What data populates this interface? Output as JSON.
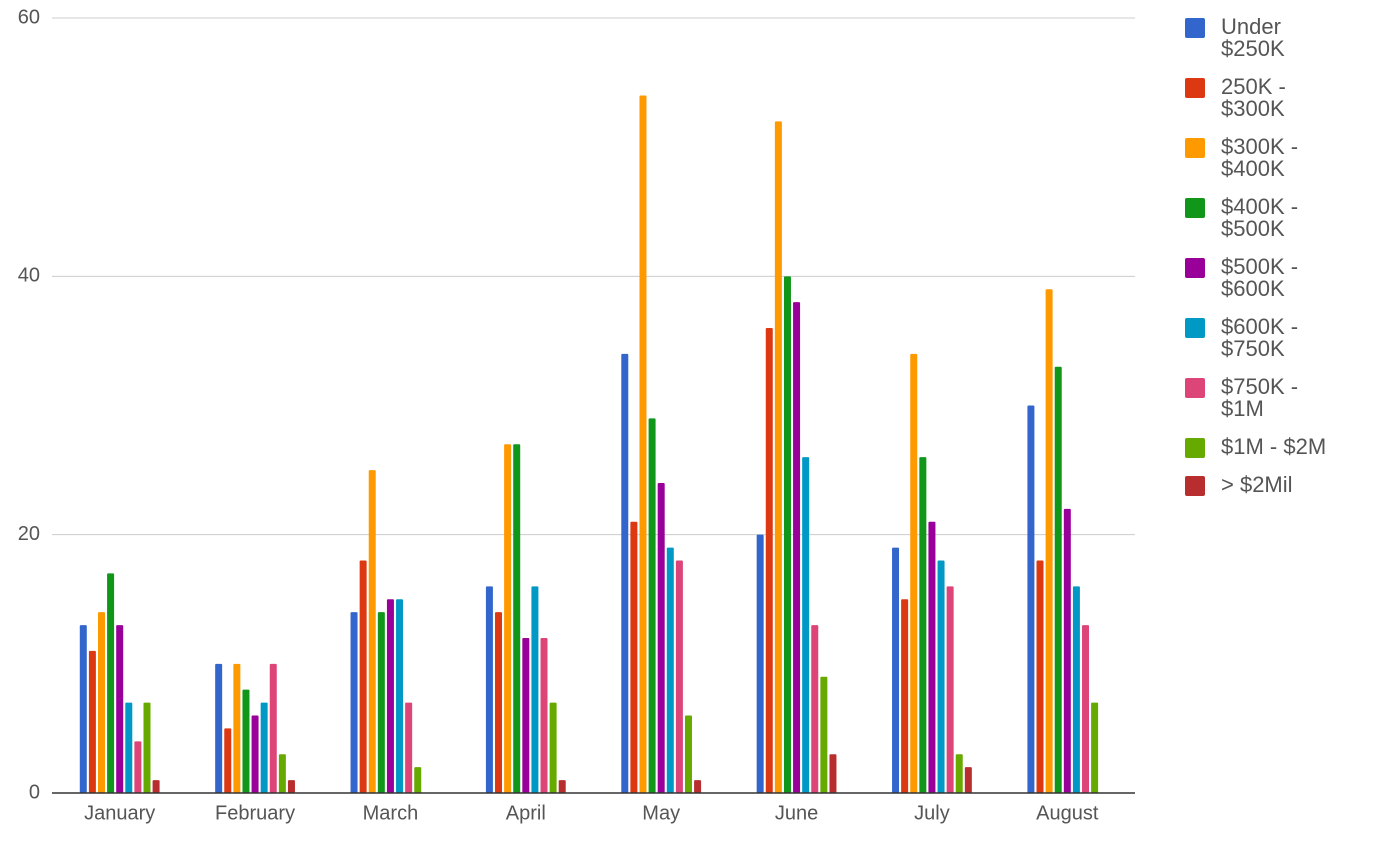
{
  "chart_data": {
    "type": "bar",
    "categories": [
      "January",
      "February",
      "March",
      "April",
      "May",
      "June",
      "July",
      "August"
    ],
    "series": [
      {
        "name": "Under $250K",
        "color": "#3366cc",
        "values": [
          13,
          10,
          14,
          16,
          34,
          20,
          19,
          30
        ]
      },
      {
        "name": "250K - $300K",
        "color": "#dc3912",
        "values": [
          11,
          5,
          18,
          14,
          21,
          36,
          15,
          18
        ]
      },
      {
        "name": "$300K - $400K",
        "color": "#ff9900",
        "values": [
          14,
          10,
          25,
          27,
          54,
          52,
          34,
          39
        ]
      },
      {
        "name": "$400K - $500K",
        "color": "#109618",
        "values": [
          17,
          8,
          14,
          27,
          29,
          40,
          26,
          33
        ]
      },
      {
        "name": "$500K - $600K",
        "color": "#990099",
        "values": [
          13,
          6,
          15,
          12,
          24,
          38,
          21,
          22
        ]
      },
      {
        "name": "$600K - $750K",
        "color": "#0099c6",
        "values": [
          7,
          7,
          15,
          16,
          19,
          26,
          18,
          16
        ]
      },
      {
        "name": "$750K - $1M",
        "color": "#dd4477",
        "values": [
          4,
          10,
          7,
          12,
          18,
          13,
          16,
          13
        ]
      },
      {
        "name": "$1M - $2M",
        "color": "#66aa00",
        "values": [
          7,
          3,
          2,
          7,
          6,
          9,
          3,
          7
        ]
      },
      {
        "name": "> $2Mil",
        "color": "#b82e2e",
        "values": [
          1,
          1,
          0,
          1,
          1,
          3,
          2,
          0
        ]
      }
    ],
    "ylim": [
      0,
      60
    ],
    "yticks": [
      0,
      20,
      40,
      60
    ],
    "grid": true,
    "legend": "right"
  }
}
